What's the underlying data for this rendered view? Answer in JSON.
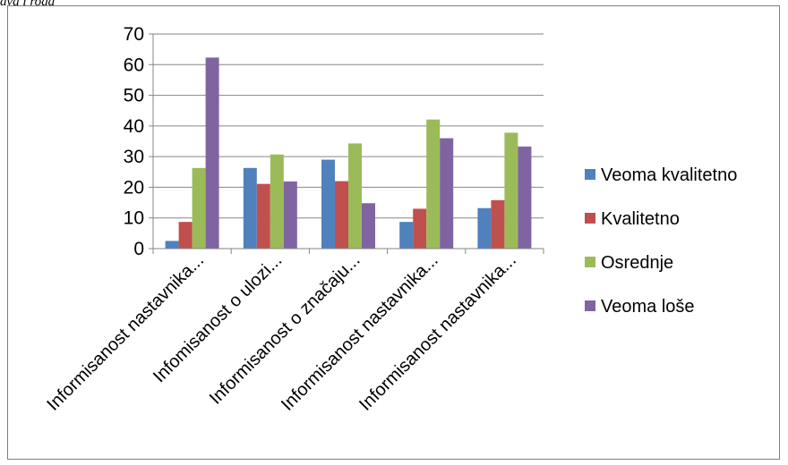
{
  "caption": "ava i roga",
  "chart_data": {
    "type": "bar",
    "title": "",
    "xlabel": "",
    "ylabel": "",
    "ylim": [
      0,
      70
    ],
    "yticks": [
      0,
      10,
      20,
      30,
      40,
      50,
      60,
      70
    ],
    "grid": true,
    "legend_position": "right",
    "categories": [
      "Informisanost nastavnika...",
      "Infomisanost o ulozi...",
      "Informisanost o značaju...",
      "Informisanost nastavnika...",
      "Informisanost nastavnika..."
    ],
    "series": [
      {
        "name": "Veoma kvalitetno",
        "color": "#4f81bd",
        "values": [
          2.5,
          26.3,
          29.0,
          8.7,
          13.2
        ]
      },
      {
        "name": "Kvalitetno",
        "color": "#c0504d",
        "values": [
          8.7,
          21.1,
          22.0,
          13.0,
          15.8
        ]
      },
      {
        "name": "Osrednje",
        "color": "#9bbb59",
        "values": [
          26.3,
          30.7,
          34.3,
          42.1,
          37.8
        ]
      },
      {
        "name": "Veoma loše",
        "color": "#8064a2",
        "values": [
          62.3,
          21.9,
          14.8,
          36.0,
          33.3
        ]
      }
    ]
  }
}
